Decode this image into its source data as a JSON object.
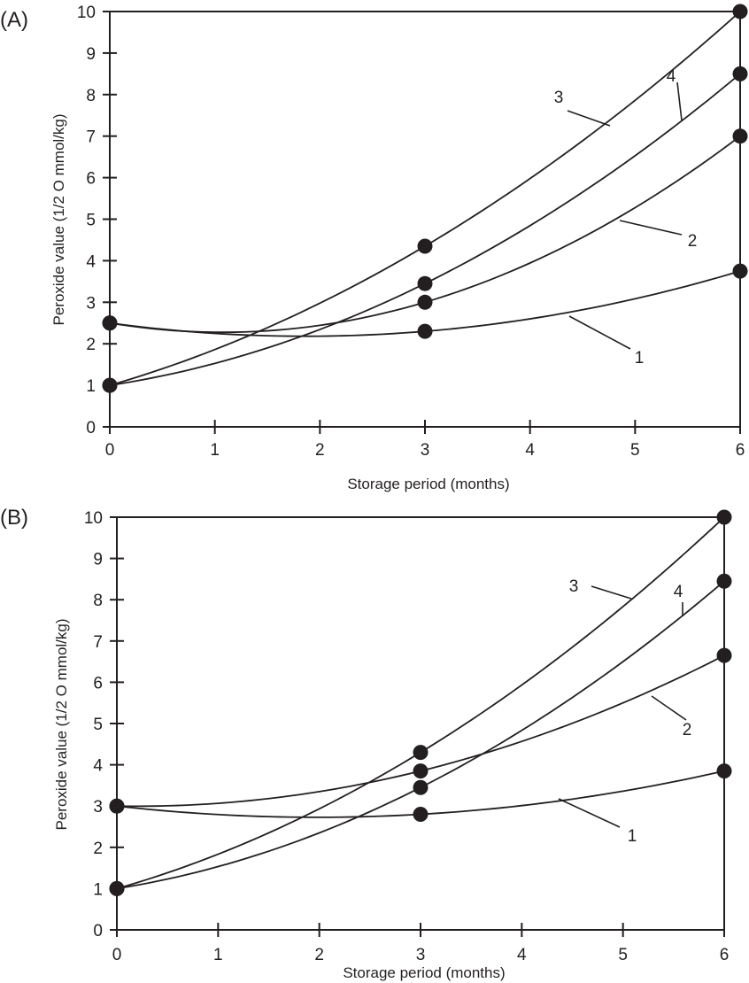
{
  "chart_data": [
    {
      "panel": "(A)",
      "type": "line",
      "title": "",
      "xlabel": "Storage period (months)",
      "ylabel": "Peroxide value (1/2 O mmol/kg)",
      "xlim": [
        0,
        6
      ],
      "ylim": [
        0,
        10
      ],
      "xticks": [
        "0",
        "1",
        "2",
        "3",
        "4",
        "5",
        "6"
      ],
      "yticks": [
        "0",
        "1",
        "2",
        "3",
        "4",
        "5",
        "6",
        "7",
        "8",
        "9",
        "10"
      ],
      "grid": false,
      "legend": "inline-labels",
      "x": [
        0,
        3,
        6
      ],
      "series": [
        {
          "name": "1",
          "values": [
            2.5,
            2.3,
            3.75
          ]
        },
        {
          "name": "2",
          "values": [
            2.5,
            3.0,
            7.0
          ]
        },
        {
          "name": "3",
          "values": [
            1.0,
            4.35,
            10.0
          ]
        },
        {
          "name": "4",
          "values": [
            1.0,
            3.45,
            8.5
          ]
        }
      ]
    },
    {
      "panel": "(B)",
      "type": "line",
      "title": "",
      "xlabel": "Storage period (months)",
      "ylabel": "Peroxide value (1/2 O mmol/kg)",
      "xlim": [
        0,
        6
      ],
      "ylim": [
        0,
        10
      ],
      "xticks": [
        "0",
        "1",
        "2",
        "3",
        "4",
        "5",
        "6"
      ],
      "yticks": [
        "0",
        "1",
        "2",
        "3",
        "4",
        "5",
        "6",
        "7",
        "8",
        "9",
        "10"
      ],
      "grid": false,
      "legend": "inline-labels",
      "x": [
        0,
        3,
        6
      ],
      "series": [
        {
          "name": "1",
          "values": [
            3.0,
            2.8,
            3.85
          ]
        },
        {
          "name": "2",
          "values": [
            3.0,
            3.85,
            6.65
          ]
        },
        {
          "name": "3",
          "values": [
            1.0,
            4.3,
            10.0
          ]
        },
        {
          "name": "4",
          "values": [
            1.0,
            3.45,
            8.45
          ]
        }
      ]
    }
  ]
}
